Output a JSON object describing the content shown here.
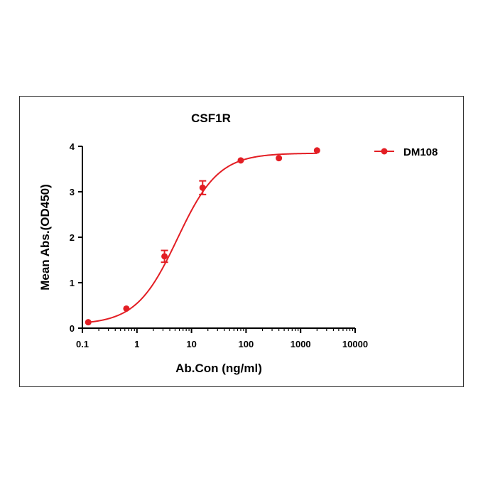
{
  "chart_data": {
    "type": "scatter",
    "title": "CSF1R",
    "xlabel": "Ab.Con (ng/ml)",
    "ylabel": "Mean Abs.(OD450)",
    "x_scale": "log",
    "xlim": [
      0.1,
      10000
    ],
    "ylim": [
      0,
      4
    ],
    "x_ticks": [
      0.1,
      1,
      10,
      100,
      1000,
      10000
    ],
    "x_tick_labels": [
      "0.1",
      "1",
      "10",
      "100",
      "1000",
      "10000"
    ],
    "y_ticks": [
      0,
      1,
      2,
      3,
      4
    ],
    "y_tick_labels": [
      "0",
      "1",
      "2",
      "3",
      "4"
    ],
    "grid": false,
    "legend": "top-right",
    "series": [
      {
        "name": "DM108",
        "color": "#e31e24",
        "marker": "circle",
        "fit": "sigmoidal",
        "points": [
          {
            "x": 0.128,
            "y": 0.13,
            "err": 0.02
          },
          {
            "x": 0.64,
            "y": 0.43,
            "err": 0.03
          },
          {
            "x": 3.2,
            "y": 1.58,
            "err": 0.13
          },
          {
            "x": 16,
            "y": 3.09,
            "err": 0.15
          },
          {
            "x": 80,
            "y": 3.69,
            "err": 0.03
          },
          {
            "x": 400,
            "y": 3.74,
            "err": 0.02
          },
          {
            "x": 2000,
            "y": 3.91,
            "err": 0.02
          }
        ],
        "fit_params": {
          "bottom": 0.08,
          "top": 3.85,
          "ec50": 5.5,
          "hill": 1.15
        }
      }
    ]
  }
}
